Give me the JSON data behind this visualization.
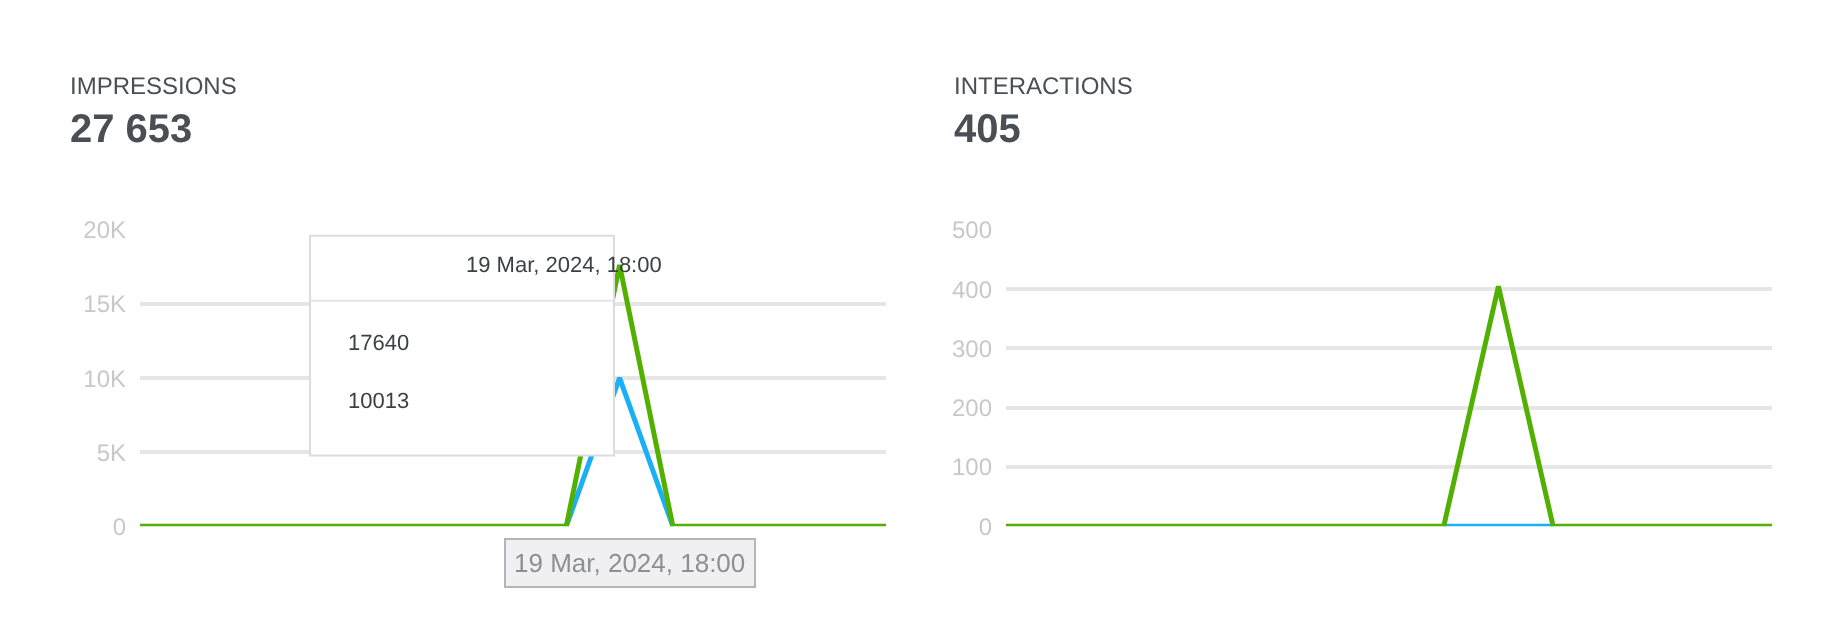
{
  "chart_data": [
    {
      "type": "line",
      "title": "IMPRESSIONS",
      "subtitle": "27 653",
      "categories": [
        null,
        null,
        null,
        null,
        null,
        null,
        null,
        null,
        null,
        null,
        null,
        null,
        null,
        null,
        null
      ],
      "series": [
        {
          "color": "#1ab0f5",
          "values": [
            null,
            null,
            null,
            null,
            null,
            null,
            null,
            null,
            0,
            10013,
            0,
            null,
            null,
            null,
            null
          ]
        },
        {
          "color": "#52b000",
          "values": [
            0,
            0,
            0,
            0,
            0,
            0,
            0,
            0,
            0,
            17640,
            0,
            0,
            0,
            0,
            0
          ]
        }
      ],
      "ylim": [
        0,
        20000
      ],
      "yticks": [
        0,
        {
          "value": 5000,
          "label": "5K"
        },
        {
          "value": 10000,
          "label": "10K"
        },
        {
          "value": 15000,
          "label": "15K"
        },
        {
          "value": 20000,
          "label": "20K"
        }
      ],
      "grid": "y",
      "tick_labels": "y",
      "marker": "none",
      "line_style": "solid",
      "annotations": [
        "19 Mar, 2024, 18:00",
        "17640",
        "10013",
        "19 Mar, 2024, 18:00"
      ]
    },
    {
      "type": "line",
      "title": "INTERACTIONS",
      "subtitle": "405",
      "categories": [
        null,
        null,
        null,
        null,
        null,
        null,
        null,
        null,
        null,
        null,
        null,
        null,
        null,
        null,
        null
      ],
      "series": [
        {
          "color": "#1ab0f5",
          "values": [
            null,
            null,
            null,
            null,
            null,
            null,
            null,
            null,
            0,
            0,
            0,
            null,
            null,
            null,
            null
          ]
        },
        {
          "color": "#52b000",
          "values": [
            0,
            0,
            0,
            0,
            0,
            0,
            0,
            0,
            0,
            405,
            0,
            0,
            0,
            0,
            0
          ]
        }
      ],
      "ylim": [
        0,
        500
      ],
      "yticks": [
        0,
        100,
        200,
        300,
        400,
        500
      ],
      "grid": "y",
      "tick_labels": "y",
      "marker": "none",
      "line_style": "solid"
    }
  ]
}
